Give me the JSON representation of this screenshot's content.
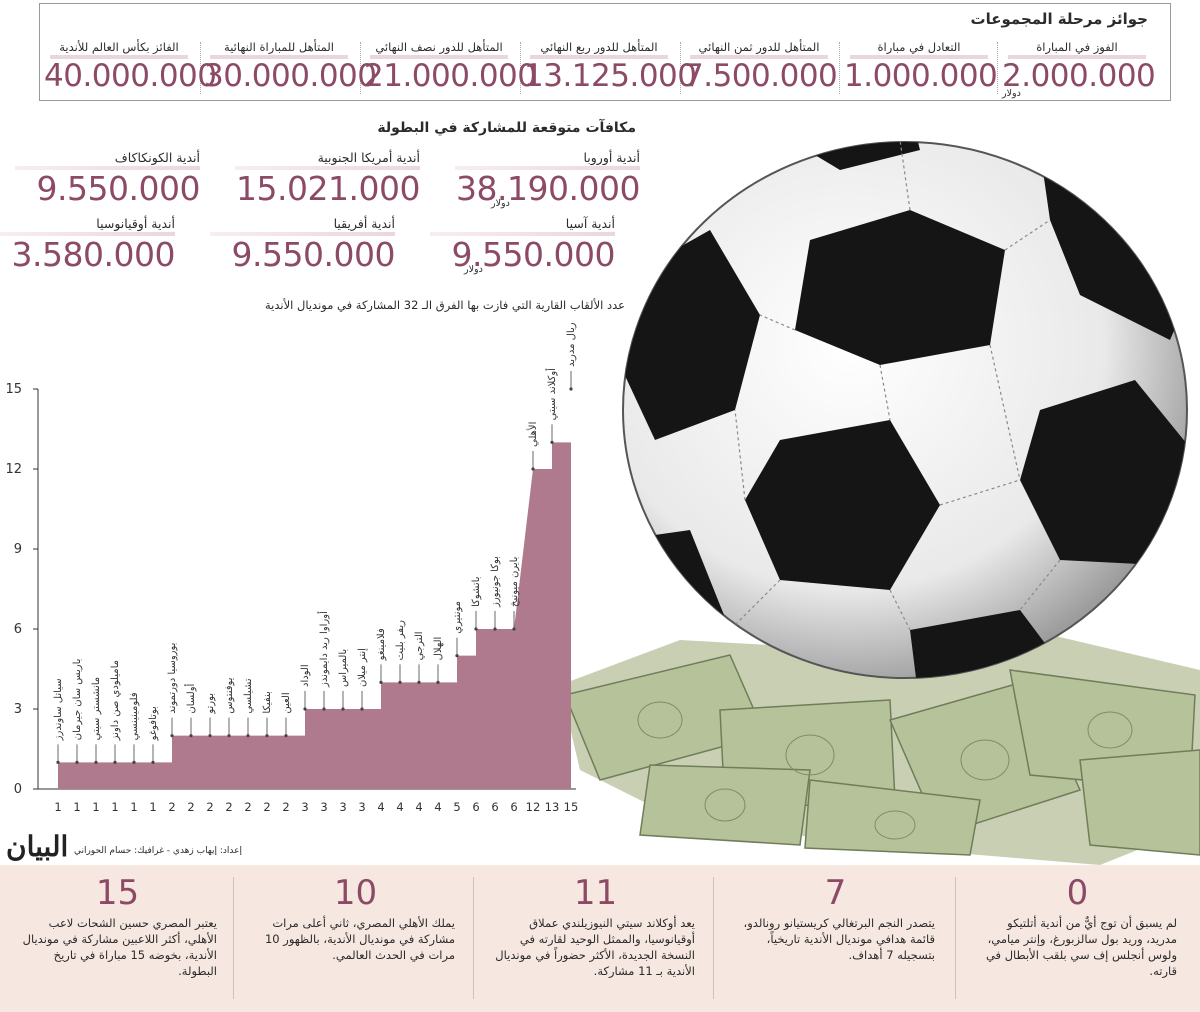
{
  "prizes": {
    "title": "جوائز مرحلة المجموعات",
    "items": [
      {
        "label": "الفوز في المباراة",
        "amount": "2.000.000",
        "unit": "دولار"
      },
      {
        "label": "التعادل في مباراة",
        "amount": "1.000.000"
      },
      {
        "label": "المتأهل للدور ثمن النهائي",
        "amount": "7.500.000"
      },
      {
        "label": "المتأهل للدور ربع النهائي",
        "amount": "13.125.000"
      },
      {
        "label": "المتأهل للدور نصف النهائي",
        "amount": "21.000.000"
      },
      {
        "label": "المتأهل للمباراة النهائية",
        "amount": "30.000.000"
      },
      {
        "label": "الفائز بكأس العالم للأندية",
        "amount": "40.000.000"
      }
    ]
  },
  "participation": {
    "title": "مكافآت متوقعة للمشاركة في البطولة",
    "regions": [
      {
        "label": "أندية أوروبا",
        "amount": "38.190.000",
        "unit": "دولار"
      },
      {
        "label": "أندية أمريكا الجنوبية",
        "amount": "15.021.000"
      },
      {
        "label": "أندية الكونكاكاف",
        "amount": "9.550.000"
      },
      {
        "label": "أندية آسيا",
        "amount": "9.550.000",
        "unit": "دولار"
      },
      {
        "label": "أندية أفريقيا",
        "amount": "9.550.000"
      },
      {
        "label": "أندية أوقيانوسيا",
        "amount": "3.580.000"
      }
    ]
  },
  "chart_data": {
    "type": "area",
    "title": "عدد الألقاب القارية التي فازت بها الفرق الـ 32 المشاركة في مونديال الأندية",
    "xlabel": "",
    "ylabel": "",
    "ylim": [
      0,
      15
    ],
    "yticks": [
      0,
      3,
      6,
      9,
      12,
      15
    ],
    "grid": false,
    "color": "#b07a8e",
    "points": [
      {
        "team": "سياتل ساوندرز",
        "value": 1
      },
      {
        "team": "باريس سان جيرمان",
        "value": 1
      },
      {
        "team": "مانشستر سيتي",
        "value": 1
      },
      {
        "team": "ماميلودي صن داونز",
        "value": 1
      },
      {
        "team": "فلومينينسي",
        "value": 1
      },
      {
        "team": "بوتافوغو",
        "value": 1
      },
      {
        "team": "بوروسيا دورتموند",
        "value": 2
      },
      {
        "team": "أولسان",
        "value": 2
      },
      {
        "team": "بورتو",
        "value": 2
      },
      {
        "team": "يوفنتوس",
        "value": 2
      },
      {
        "team": "تشيلسي",
        "value": 2
      },
      {
        "team": "بنفيكا",
        "value": 2
      },
      {
        "team": "العين",
        "value": 2
      },
      {
        "team": "الوداد",
        "value": 3
      },
      {
        "team": "أوراوا ريد دايموندز",
        "value": 3
      },
      {
        "team": "بالميراس",
        "value": 3
      },
      {
        "team": "إنتر ميلان",
        "value": 3
      },
      {
        "team": "فلامينغو",
        "value": 4
      },
      {
        "team": "ريفر بليت",
        "value": 4
      },
      {
        "team": "الترجي",
        "value": 4
      },
      {
        "team": "الهلال",
        "value": 4
      },
      {
        "team": "مونتيري",
        "value": 5
      },
      {
        "team": "باتشوكا",
        "value": 6
      },
      {
        "team": "بوكا جونيورز",
        "value": 6
      },
      {
        "team": "بايرن ميونيخ",
        "value": 6
      },
      {
        "team": "الأهلي",
        "value": 12
      },
      {
        "team": "أوكلاند سيتي",
        "value": 13
      },
      {
        "team": "ريال مدريد",
        "value": 15
      }
    ]
  },
  "credit": "إعداد: إيهاب زهدي - غرافيك: حسام الحوراني",
  "logo": "البيان",
  "facts": [
    {
      "number": "0",
      "text": "لم يسبق أن توج أيٌّ من أندية أتلتيكو مدريد، وريد بول سالزبورغ، وإنتر ميامي، ولوس أنجلس إف سي بلقب الأبطال في قارته."
    },
    {
      "number": "7",
      "text": "يتصدر النجم البرتغالي كريستيانو رونالدو، قائمة هدافي مونديال الأندية تاريخياً، بتسجيله 7 أهداف."
    },
    {
      "number": "11",
      "text": "يعد أوكلاند سيتي النيوزيلندي عملاق أوقيانوسيا، والممثل الوحيد لقارته في النسخة الجديدة، الأكثر حضوراً في مونديال الأندية بـ 11 مشاركة."
    },
    {
      "number": "10",
      "text": "يملك الأهلي المصري، ثاني أعلى مرات مشاركة في مونديال الأندية، بالظهور 10 مرات في الحدث العالمي."
    },
    {
      "number": "15",
      "text": "يعتبر المصري حسين الشحات لاعب الأهلي، أكثر اللاعبين مشاركة في مونديال الأندية، بخوضه 15 مباراة في تاريخ البطولة."
    }
  ]
}
